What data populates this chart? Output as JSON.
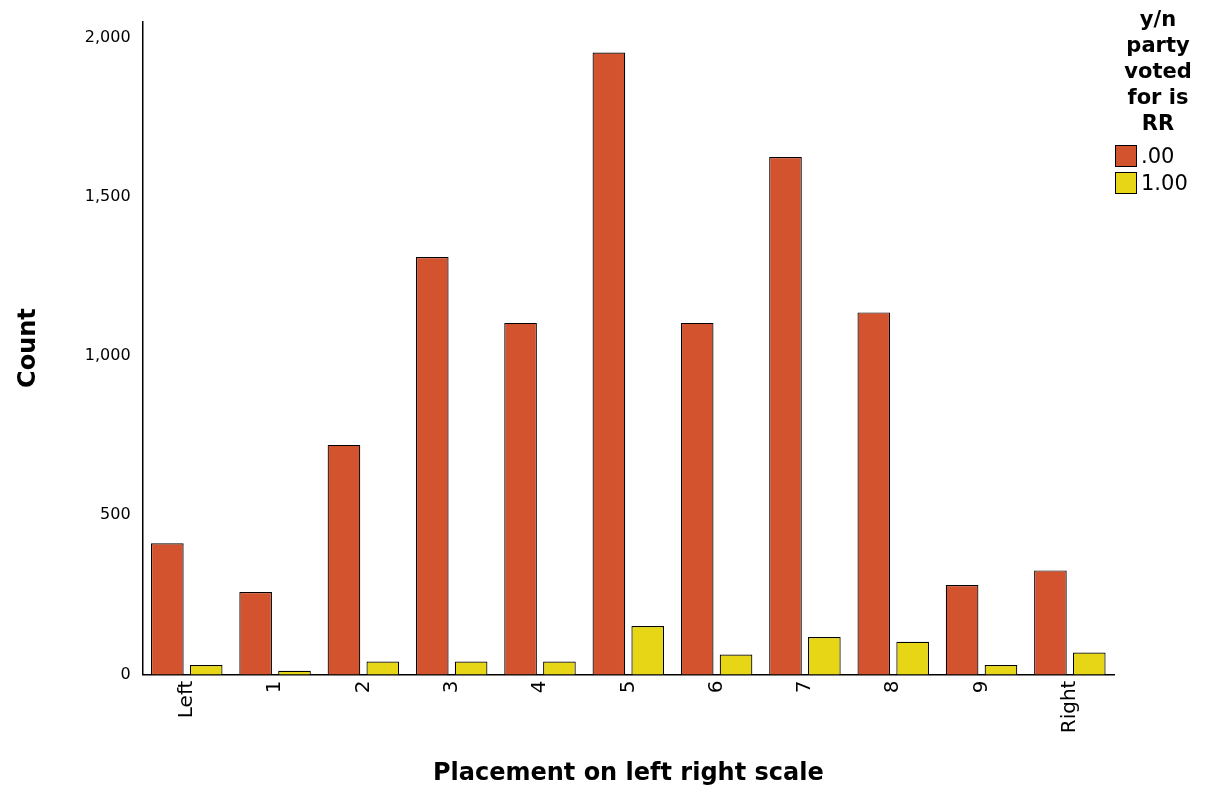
{
  "chart_data": {
    "type": "bar",
    "xlabel": "Placement on left right scale",
    "ylabel": "Count",
    "legend_title": "y/n party voted for is RR",
    "categories": [
      "Left",
      "1",
      "2",
      "3",
      "4",
      "5",
      "6",
      "7",
      "8",
      "9",
      "Right"
    ],
    "series": [
      {
        "name": ".00",
        "color": "#d4532f",
        "values": [
          412,
          259,
          721,
          1311,
          1104,
          1953,
          1104,
          1625,
          1137,
          281,
          327
        ]
      },
      {
        "name": "1.00",
        "color": "#e6d615",
        "values": [
          30,
          12,
          41,
          41,
          41,
          152,
          63,
          118,
          103,
          30,
          69
        ]
      }
    ],
    "ylim": [
      0,
      2050
    ],
    "yticks": [
      {
        "value": 0,
        "label": "0"
      },
      {
        "value": 500,
        "label": "500"
      },
      {
        "value": 1000,
        "label": "1,000"
      },
      {
        "value": 1500,
        "label": "1,500"
      },
      {
        "value": 2000,
        "label": "2,000"
      }
    ],
    "grid": false,
    "legend": "top right"
  }
}
